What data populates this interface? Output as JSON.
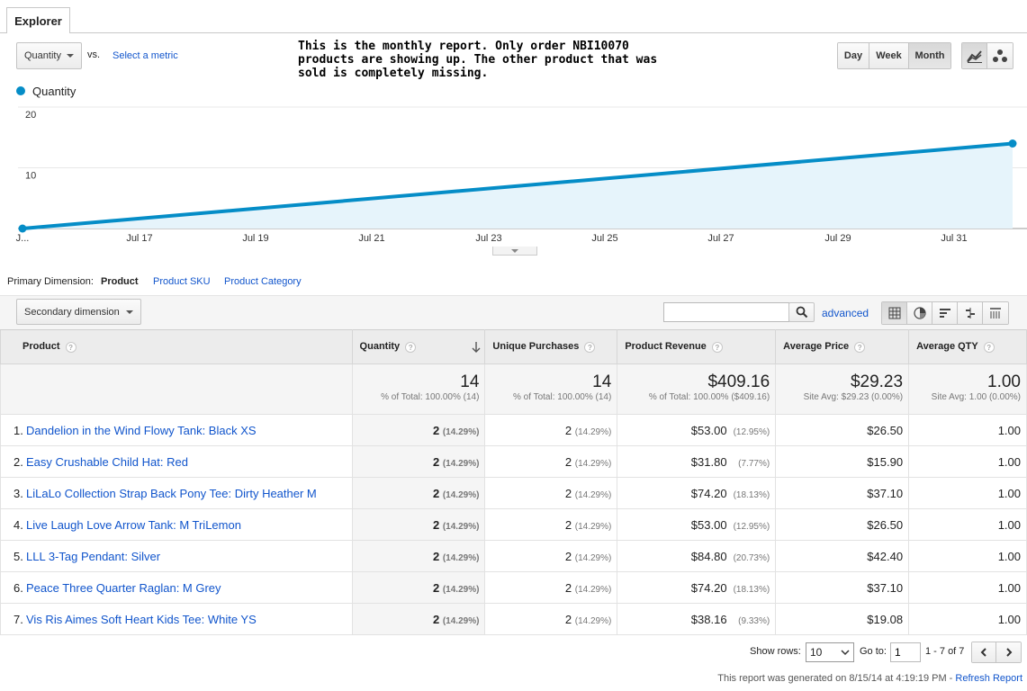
{
  "tab": {
    "label": "Explorer"
  },
  "metric_selector": {
    "selected": "Quantity",
    "vs_label": "vs.",
    "select_metric": "Select a metric"
  },
  "annotation": "This is the monthly report. Only order NBI10070 products are showing up. The other product that was sold is completely missing.",
  "granularity": {
    "day": "Day",
    "week": "Week",
    "month": "Month",
    "active": "Month"
  },
  "chart_icons": [
    "line-chart-icon",
    "motion-chart-icon"
  ],
  "colors": {
    "series": "#058dc7",
    "area": "#e6f4fb",
    "link": "#1155cc"
  },
  "chart_data": {
    "type": "area",
    "legend": [
      {
        "name": "Quantity",
        "color": "#058dc7"
      }
    ],
    "x_labels": [
      "J...",
      "Jul 17",
      "Jul 19",
      "Jul 21",
      "Jul 23",
      "Jul 25",
      "Jul 27",
      "Jul 29",
      "Jul 31"
    ],
    "y_ticks": [
      10,
      20
    ],
    "ylim": [
      0,
      20
    ],
    "series": [
      {
        "name": "Quantity",
        "points": [
          {
            "x": "J...",
            "y": 0
          },
          {
            "x": "end",
            "y": 14
          }
        ]
      }
    ],
    "grid": true
  },
  "dimensions": {
    "label": "Primary Dimension:",
    "active": "Product",
    "options": [
      "Product SKU",
      "Product Category"
    ]
  },
  "toolbar": {
    "secondary_dimension": "Secondary dimension",
    "search_placeholder": "",
    "advanced": "advanced",
    "view_icons": [
      "table-view-icon",
      "pie-view-icon",
      "bar-view-icon",
      "comparison-view-icon",
      "pivot-view-icon"
    ]
  },
  "table": {
    "columns": [
      "Product",
      "Quantity",
      "Unique Purchases",
      "Product Revenue",
      "Average Price",
      "Average QTY"
    ],
    "totals": [
      {
        "value": "14",
        "sub": "% of Total: 100.00% (14)"
      },
      {
        "value": "14",
        "sub": "% of Total: 100.00% (14)"
      },
      {
        "value": "$409.16",
        "sub": "% of Total: 100.00% ($409.16)"
      },
      {
        "value": "$29.23",
        "sub": "Site Avg: $29.23 (0.00%)"
      },
      {
        "value": "1.00",
        "sub": "Site Avg: 1.00 (0.00%)"
      }
    ],
    "rows": [
      {
        "n": "1.",
        "product": "Dandelion in the Wind Flowy Tank: Black XS",
        "qty": "2",
        "qty_pct": "(14.29%)",
        "uniq": "2",
        "uniq_pct": "(14.29%)",
        "rev": "$53.00",
        "rev_pct": "(12.95%)",
        "price": "$26.50",
        "avg_qty": "1.00"
      },
      {
        "n": "2.",
        "product": "Easy Crushable Child Hat: Red",
        "qty": "2",
        "qty_pct": "(14.29%)",
        "uniq": "2",
        "uniq_pct": "(14.29%)",
        "rev": "$31.80",
        "rev_pct": "(7.77%)",
        "price": "$15.90",
        "avg_qty": "1.00"
      },
      {
        "n": "3.",
        "product": "LiLaLo Collection Strap Back Pony Tee: Dirty Heather M",
        "qty": "2",
        "qty_pct": "(14.29%)",
        "uniq": "2",
        "uniq_pct": "(14.29%)",
        "rev": "$74.20",
        "rev_pct": "(18.13%)",
        "price": "$37.10",
        "avg_qty": "1.00"
      },
      {
        "n": "4.",
        "product": "Live Laugh Love Arrow Tank: M TriLemon",
        "qty": "2",
        "qty_pct": "(14.29%)",
        "uniq": "2",
        "uniq_pct": "(14.29%)",
        "rev": "$53.00",
        "rev_pct": "(12.95%)",
        "price": "$26.50",
        "avg_qty": "1.00"
      },
      {
        "n": "5.",
        "product": "LLL 3-Tag Pendant: Silver",
        "qty": "2",
        "qty_pct": "(14.29%)",
        "uniq": "2",
        "uniq_pct": "(14.29%)",
        "rev": "$84.80",
        "rev_pct": "(20.73%)",
        "price": "$42.40",
        "avg_qty": "1.00"
      },
      {
        "n": "6.",
        "product": "Peace Three Quarter Raglan: M Grey",
        "qty": "2",
        "qty_pct": "(14.29%)",
        "uniq": "2",
        "uniq_pct": "(14.29%)",
        "rev": "$74.20",
        "rev_pct": "(18.13%)",
        "price": "$37.10",
        "avg_qty": "1.00"
      },
      {
        "n": "7.",
        "product": "Vis Ris Aimes Soft Heart Kids Tee: White YS",
        "qty": "2",
        "qty_pct": "(14.29%)",
        "uniq": "2",
        "uniq_pct": "(14.29%)",
        "rev": "$38.16",
        "rev_pct": "(9.33%)",
        "price": "$19.08",
        "avg_qty": "1.00"
      }
    ]
  },
  "pagination": {
    "show_rows_label": "Show rows:",
    "show_rows_value": "10",
    "goto_label": "Go to:",
    "goto_value": "1",
    "range": "1 - 7 of 7"
  },
  "footer": {
    "generated": "This report was generated on 8/15/14 at 4:19:19 PM - ",
    "refresh": "Refresh Report"
  }
}
